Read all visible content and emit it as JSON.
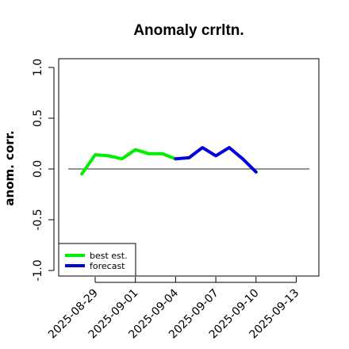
{
  "chart_data": {
    "type": "line",
    "title": "Anomaly crrltn.",
    "xlabel": "",
    "ylabel": "anom. corr.",
    "ylim": [
      -1.0,
      1.0
    ],
    "y_ticks": [
      "-1.0",
      "-0.5",
      "0.0",
      "0.5",
      "1.0"
    ],
    "x_ticks": [
      "2025-08-29",
      "2025-09-01",
      "2025-09-04",
      "2025-09-07",
      "2025-09-10",
      "2025-09-13"
    ],
    "highlight_tick": "2025-09-04",
    "reference_line_y": 0.0,
    "series": [
      {
        "name": "best est.",
        "color": "#00ee00",
        "points": [
          {
            "x": "2025-08-28",
            "y": -0.05
          },
          {
            "x": "2025-08-29",
            "y": 0.14
          },
          {
            "x": "2025-08-30",
            "y": 0.13
          },
          {
            "x": "2025-08-31",
            "y": 0.1
          },
          {
            "x": "2025-09-01",
            "y": 0.19
          },
          {
            "x": "2025-09-02",
            "y": 0.15
          },
          {
            "x": "2025-09-03",
            "y": 0.15
          },
          {
            "x": "2025-09-04",
            "y": 0.1
          }
        ]
      },
      {
        "name": "forecast",
        "color": "#0000dd",
        "points": [
          {
            "x": "2025-09-04",
            "y": 0.1
          },
          {
            "x": "2025-09-05",
            "y": 0.11
          },
          {
            "x": "2025-09-06",
            "y": 0.21
          },
          {
            "x": "2025-09-07",
            "y": 0.13
          },
          {
            "x": "2025-09-08",
            "y": 0.21
          },
          {
            "x": "2025-09-09",
            "y": 0.1
          },
          {
            "x": "2025-09-10",
            "y": -0.03
          }
        ]
      }
    ],
    "legend": {
      "position": "bottom-left",
      "entries": [
        {
          "label": "best est.",
          "color": "#00ee00"
        },
        {
          "label": "forecast",
          "color": "#0000dd"
        }
      ]
    },
    "colors": {
      "highlight_tick_color": "#228b22",
      "reference_line_color": "#555555"
    }
  }
}
